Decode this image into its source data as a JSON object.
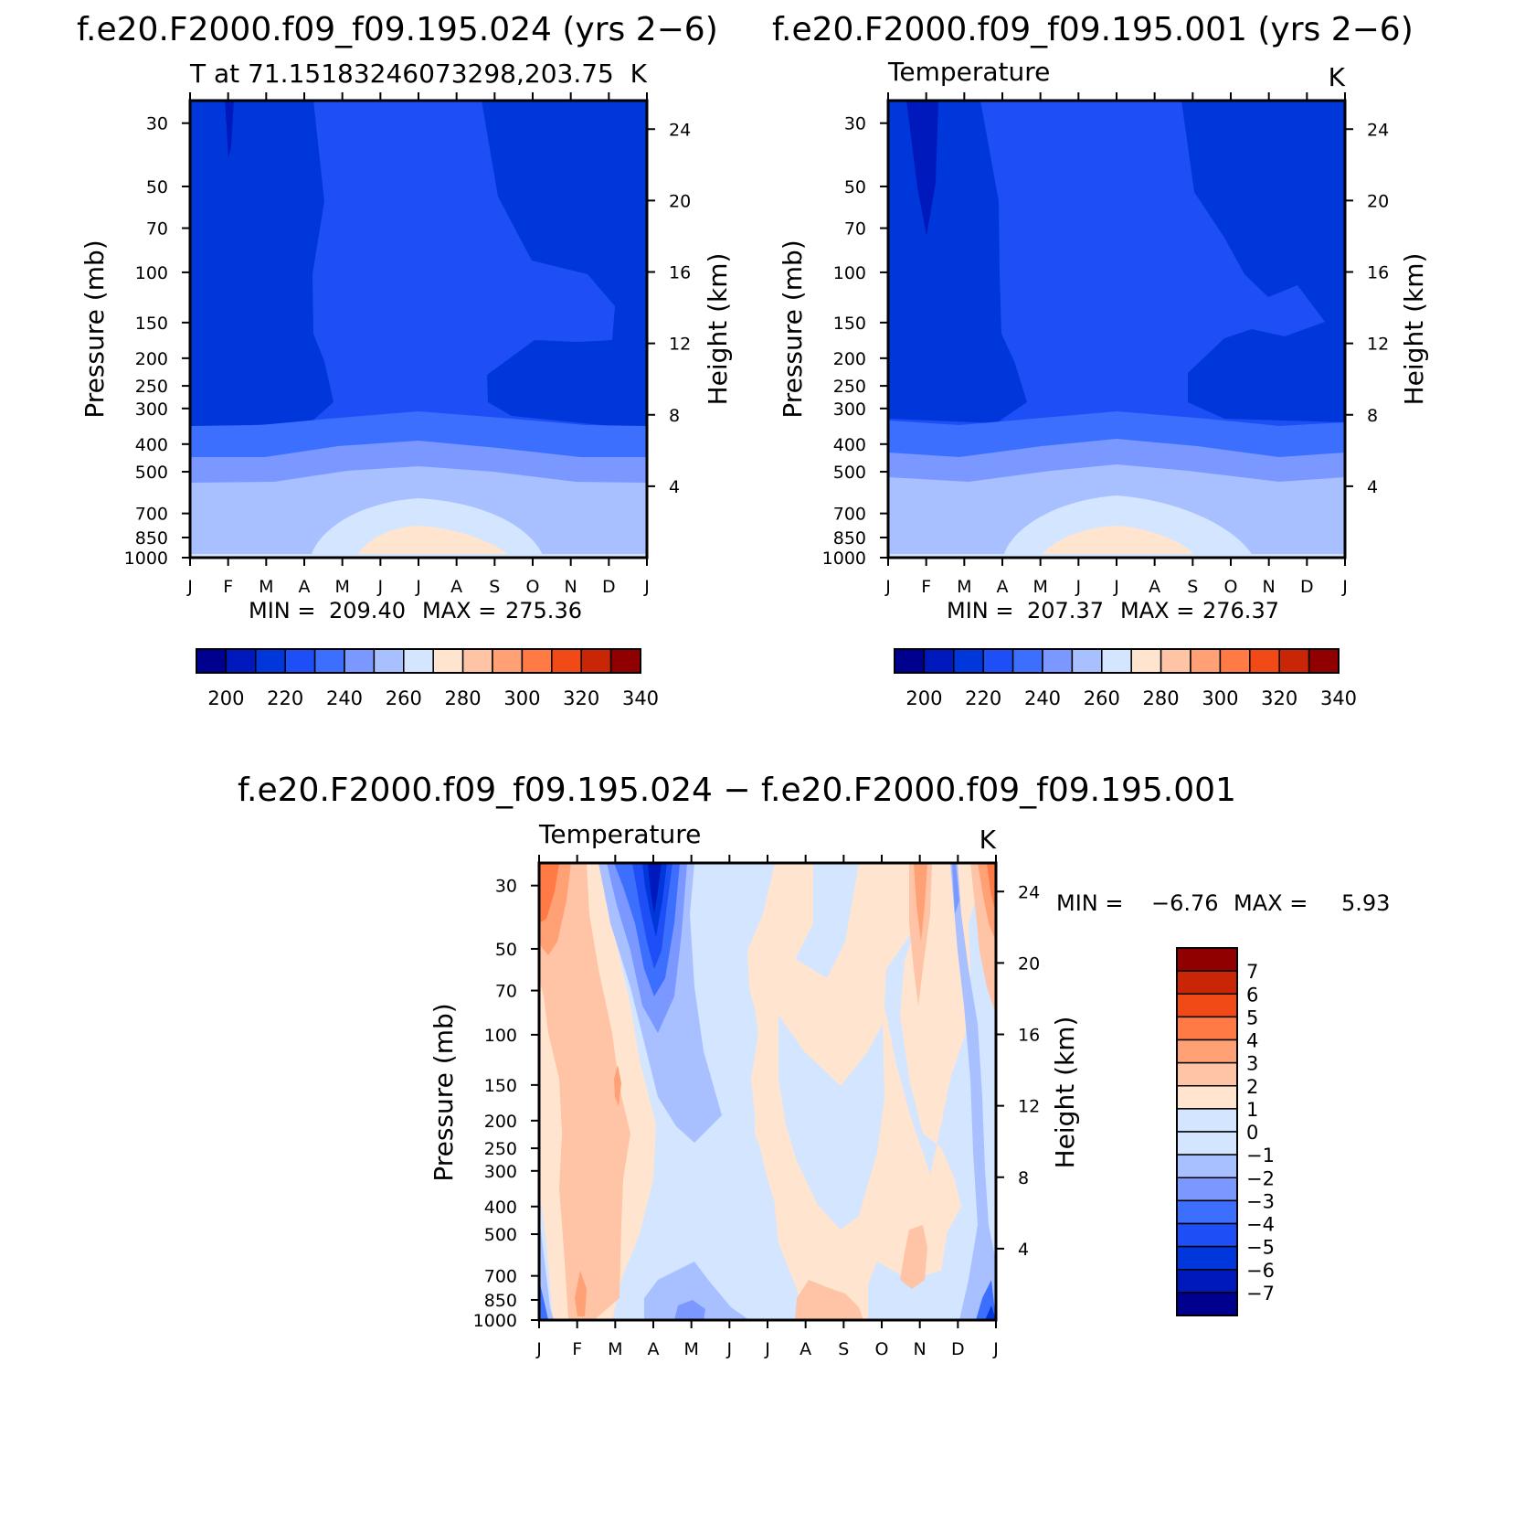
{
  "chart_data": [
    {
      "type": "heatmap",
      "id": "panel_a",
      "title": "f.e20.F2000.f09_f09.195.024 (yrs 2−6)",
      "subtitle": "T at 71.15183246073298,203.75",
      "units": "K",
      "xlabel": "",
      "ylabel": "Pressure (mb)",
      "ylabel_right": "Height (km)",
      "x_ticks": [
        "J",
        "F",
        "M",
        "A",
        "M",
        "J",
        "J",
        "A",
        "S",
        "O",
        "N",
        "D",
        "J"
      ],
      "pressure_ticks": [
        30,
        50,
        70,
        100,
        150,
        200,
        250,
        300,
        400,
        500,
        700,
        850,
        1000
      ],
      "height_ticks": [
        4,
        8,
        12,
        16,
        20,
        24
      ],
      "min_label": "MIN =",
      "min_value": "209.40",
      "max_label": "MAX =",
      "max_value": "275.36",
      "colorbar": {
        "labels": [
          "200",
          "220",
          "240",
          "260",
          "280",
          "300",
          "320",
          "340"
        ],
        "levels": [
          200,
          210,
          220,
          230,
          240,
          250,
          260,
          270,
          280,
          290,
          300,
          310,
          320,
          330,
          340
        ],
        "colors": [
          "#00008f",
          "#0019bd",
          "#0037da",
          "#1e4ff6",
          "#3d6fff",
          "#7a98ff",
          "#a8c0ff",
          "#d3e5ff",
          "#ffe5d0",
          "#ffc4a6",
          "#ffa075",
          "#ff7a45",
          "#f24a17",
          "#c82606",
          "#900000"
        ]
      }
    },
    {
      "type": "heatmap",
      "id": "panel_b",
      "title": "f.e20.F2000.f09_f09.195.001 (yrs 2−6)",
      "subtitle": "Temperature",
      "units": "K",
      "xlabel": "",
      "ylabel": "Pressure (mb)",
      "ylabel_right": "Height (km)",
      "x_ticks": [
        "J",
        "F",
        "M",
        "A",
        "M",
        "J",
        "J",
        "A",
        "S",
        "O",
        "N",
        "D",
        "J"
      ],
      "pressure_ticks": [
        30,
        50,
        70,
        100,
        150,
        200,
        250,
        300,
        400,
        500,
        700,
        850,
        1000
      ],
      "height_ticks": [
        4,
        8,
        12,
        16,
        20,
        24
      ],
      "min_label": "MIN =",
      "min_value": "207.37",
      "max_label": "MAX =",
      "max_value": "276.37",
      "colorbar": {
        "labels": [
          "200",
          "220",
          "240",
          "260",
          "280",
          "300",
          "320",
          "340"
        ],
        "levels": [
          200,
          210,
          220,
          230,
          240,
          250,
          260,
          270,
          280,
          290,
          300,
          310,
          320,
          330,
          340
        ],
        "colors": [
          "#00008f",
          "#0019bd",
          "#0037da",
          "#1e4ff6",
          "#3d6fff",
          "#7a98ff",
          "#a8c0ff",
          "#d3e5ff",
          "#ffe5d0",
          "#ffc4a6",
          "#ffa075",
          "#ff7a45",
          "#f24a17",
          "#c82606",
          "#900000"
        ]
      }
    },
    {
      "type": "heatmap",
      "id": "panel_diff",
      "title": "f.e20.F2000.f09_f09.195.024 − f.e20.F2000.f09_f09.195.001",
      "subtitle": "Temperature",
      "units": "K",
      "xlabel": "",
      "ylabel": "Pressure (mb)",
      "ylabel_right": "Height (km)",
      "x_ticks": [
        "J",
        "F",
        "M",
        "A",
        "M",
        "J",
        "J",
        "A",
        "S",
        "O",
        "N",
        "D",
        "J"
      ],
      "pressure_ticks": [
        30,
        50,
        70,
        100,
        150,
        200,
        250,
        300,
        400,
        500,
        700,
        850,
        1000
      ],
      "height_ticks": [
        4,
        8,
        12,
        16,
        20,
        24
      ],
      "min_label": "MIN =",
      "min_value": "−6.76",
      "max_label": "MAX =",
      "max_value": "5.93",
      "colorbar": {
        "labels": [
          "7",
          "6",
          "5",
          "4",
          "3",
          "2",
          "1",
          "0",
          "−1",
          "−2",
          "−3",
          "−4",
          "−5",
          "−6",
          "−7"
        ],
        "levels": [
          7,
          6,
          5,
          4,
          3,
          2,
          1,
          0,
          -1,
          -2,
          -3,
          -4,
          -5,
          -6,
          -7
        ],
        "colors": [
          "#900000",
          "#c82606",
          "#f24a17",
          "#ff7a45",
          "#ffa075",
          "#ffc4a6",
          "#ffe5d0",
          "#d3e5ff",
          "#d3e5ff",
          "#a8c0ff",
          "#7a98ff",
          "#3d6fff",
          "#1e4ff6",
          "#0037da",
          "#0019bd",
          "#00008f"
        ]
      }
    }
  ]
}
